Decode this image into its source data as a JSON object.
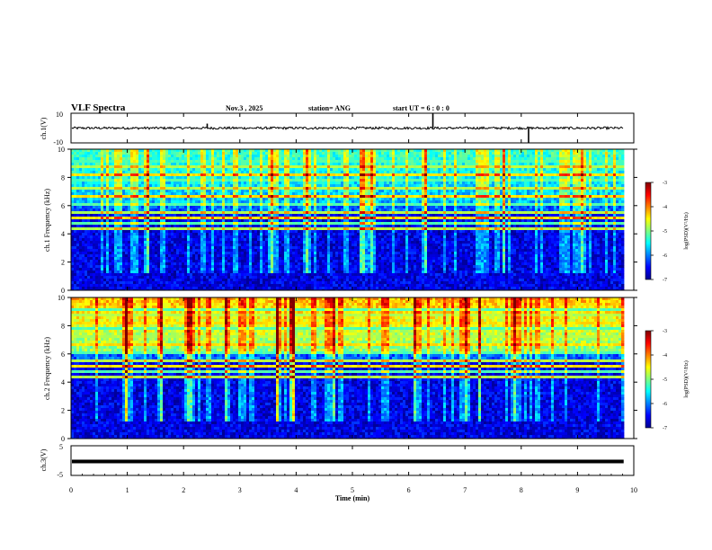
{
  "header": {
    "title": "VLF Spectra",
    "date": "Nov.3 , 2025",
    "station": "station= ANG",
    "start": "start UT = 6 : 0 : 0"
  },
  "chart_data": [
    {
      "type": "line",
      "name": "ch1-waveform",
      "ylabel": "ch.1(V)",
      "ylim": [
        -10,
        10
      ],
      "yticks": [
        "10",
        "-10"
      ],
      "baseline": 0,
      "spikes": [
        {
          "t": 2.42,
          "v": 3
        },
        {
          "t": 6.43,
          "v": 10
        },
        {
          "t": 8.13,
          "v": -10
        }
      ]
    },
    {
      "type": "heatmap",
      "name": "ch1-spectrogram",
      "ylabel": "ch.1 Frequency (kHz)",
      "yticks": [
        "0",
        "2",
        "4",
        "6",
        "8",
        "10"
      ],
      "ylim": [
        0,
        10
      ],
      "colorbar": {
        "label": "log(PSD)(V²/Hz)",
        "range": [
          -7,
          -3
        ],
        "ticks": [
          "-3",
          "-4",
          "-5",
          "-6",
          "-7"
        ]
      }
    },
    {
      "type": "heatmap",
      "name": "ch2-spectrogram",
      "ylabel": "ch.2 Frequency (kHz)",
      "yticks": [
        "0",
        "2",
        "4",
        "6",
        "8",
        "10"
      ],
      "ylim": [
        0,
        10
      ],
      "colorbar": {
        "label": "log(PSD)(V²/Hz)",
        "range": [
          -7,
          -3
        ],
        "ticks": [
          "-3",
          "-4",
          "-5",
          "-6",
          "-7"
        ]
      }
    },
    {
      "type": "line",
      "name": "ch3-waveform",
      "ylabel": "ch.3(V)",
      "ylim": [
        -5,
        5
      ],
      "yticks": [
        "5",
        "-5"
      ],
      "baseline": -0.3
    }
  ],
  "xaxis": {
    "label": "Time (min)",
    "ticks": [
      "0",
      "1",
      "2",
      "3",
      "4",
      "5",
      "6",
      "7",
      "8",
      "9",
      "10"
    ],
    "range": [
      0,
      10
    ],
    "data_end": 9.82
  },
  "colors": {
    "jet_low": "#00008f",
    "jet_mid": "#7fff7f",
    "jet_high": "#800000"
  }
}
